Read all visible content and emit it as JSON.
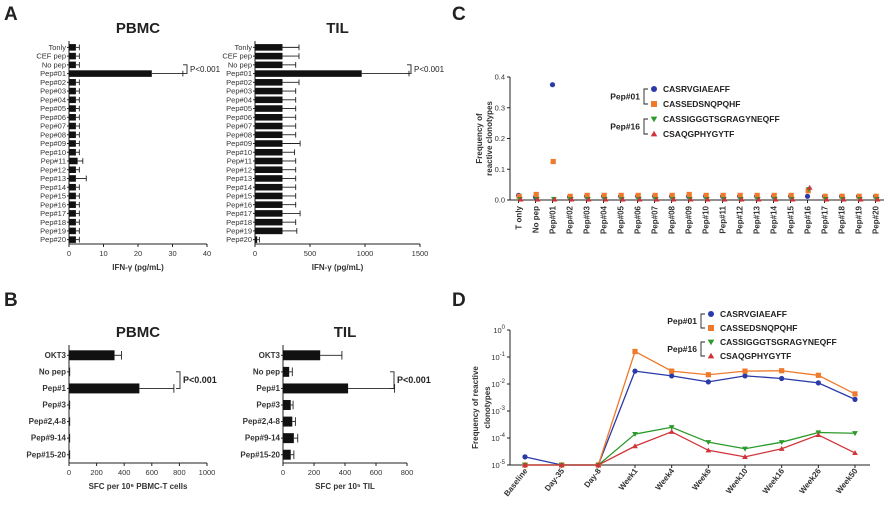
{
  "panels": {
    "A": "A",
    "B": "B",
    "C": "C",
    "D": "D"
  },
  "colors": {
    "bar": "#111111",
    "s1": "#2a3aa8",
    "s2": "#ee7a2b",
    "s3": "#2a9a2a",
    "s4": "#d0343a"
  },
  "chart_data": [
    {
      "id": "A1",
      "type": "bar",
      "orientation": "horizontal",
      "title": "PBMC",
      "xlabel": "IFN-γ (pg/mL)",
      "xlim": [
        0,
        40
      ],
      "xticks": [
        "0",
        "10",
        "20",
        "30",
        "40"
      ],
      "categories": [
        "Tonly",
        "CEF pep",
        "No pep",
        "Pep#01",
        "Pep#02",
        "Pep#03",
        "Pep#04",
        "Pep#05",
        "Pep#06",
        "Pep#07",
        "Pep#08",
        "Pep#09",
        "Pep#10",
        "Pep#11",
        "Pep#12",
        "Pep#13",
        "Pep#14",
        "Pep#15",
        "Pep#16",
        "Pep#17",
        "Pep#18",
        "Pep#19",
        "Pep#20"
      ],
      "values": [
        2,
        2,
        2,
        24,
        2,
        2,
        2,
        2,
        2,
        2,
        2,
        2,
        2,
        2.5,
        2,
        2,
        2,
        2,
        2,
        2,
        2,
        2,
        2
      ],
      "errors": [
        1,
        1,
        1,
        9,
        1,
        1,
        1,
        1,
        1,
        1,
        1,
        1,
        1,
        1.5,
        1,
        3,
        1,
        1,
        1,
        1,
        1,
        1,
        1
      ],
      "annotation": "P<0.001"
    },
    {
      "id": "A2",
      "type": "bar",
      "orientation": "horizontal",
      "title": "TIL",
      "xlabel": "IFN-γ (pg/mL)",
      "xlim": [
        0,
        1500
      ],
      "xticks": [
        "0",
        "500",
        "1000",
        "1500"
      ],
      "categories": [
        "Tonly",
        "CEF pep",
        "No pep",
        "Pep#01",
        "Pep#02",
        "Pep#03",
        "Pep#04",
        "Pep#05",
        "Pep#06",
        "Pep#07",
        "Pep#08",
        "Pep#09",
        "Pep#10",
        "Pep#11",
        "Pep#12",
        "Pep#13",
        "Pep#14",
        "Pep#15",
        "Pep#16",
        "Pep#17",
        "Pep#18",
        "Pep#19",
        "Pep#20"
      ],
      "values": [
        250,
        250,
        250,
        970,
        250,
        250,
        250,
        250,
        250,
        250,
        250,
        250,
        250,
        250,
        250,
        250,
        250,
        250,
        250,
        250,
        250,
        250,
        20
      ],
      "errors": [
        150,
        150,
        120,
        430,
        150,
        120,
        120,
        120,
        120,
        120,
        120,
        160,
        110,
        120,
        120,
        120,
        120,
        120,
        120,
        160,
        120,
        130,
        20
      ],
      "annotation": "P<0.001"
    },
    {
      "id": "B1",
      "type": "bar",
      "orientation": "horizontal",
      "title": "PBMC",
      "xlabel": "SFC per 10⁶ PBMC-T cells",
      "xlim": [
        0,
        1000
      ],
      "xticks": [
        "0",
        "200",
        "400",
        "600",
        "800",
        "1000"
      ],
      "categories": [
        "OKT3",
        "No pep",
        "Pep#1",
        "Pep#3",
        "Pep#2,4-8",
        "Pep#9-14",
        "Pep#15-20"
      ],
      "values": [
        330,
        0,
        510,
        0,
        0,
        0,
        0
      ],
      "errors": [
        50,
        5,
        250,
        5,
        5,
        5,
        5
      ],
      "annotation": "P<0.001"
    },
    {
      "id": "B2",
      "type": "bar",
      "orientation": "horizontal",
      "title": "TIL",
      "xlabel": "SFC per 10⁵ TIL",
      "xlim": [
        0,
        800
      ],
      "xticks": [
        "0",
        "200",
        "400",
        "600",
        "800"
      ],
      "categories": [
        "OKT3",
        "No pep",
        "Pep#1",
        "Pep#3",
        "Pep#2,4-8",
        "Pep#9-14",
        "Pep#15-20"
      ],
      "values": [
        240,
        40,
        420,
        50,
        60,
        70,
        50
      ],
      "errors": [
        140,
        20,
        300,
        15,
        20,
        25,
        20
      ],
      "annotation": "P<0.001"
    },
    {
      "id": "C",
      "type": "scatter",
      "ylabel": "Frequency of reactive clonotypes",
      "ylim": [
        0,
        0.4
      ],
      "yticks": [
        "0.0",
        "0.1",
        "0.2",
        "0.3",
        "0.4"
      ],
      "categories": [
        "T only",
        "No pep",
        "Pep#01",
        "Pep#02",
        "Pep#03",
        "Pep#04",
        "Pep#05",
        "Pep#06",
        "Pep#07",
        "Pep#08",
        "Pep#09",
        "Pep#10",
        "Pep#11",
        "Pep#12",
        "Pep#13",
        "Pep#14",
        "Pep#15",
        "Pep#16",
        "Pep#17",
        "Pep#18",
        "Pep#19",
        "Pep#20"
      ],
      "series": [
        {
          "name": "CASRVGIAEAFF",
          "values": [
            0.015,
            0.01,
            0.375,
            0.01,
            0.012,
            0.012,
            0.012,
            0.012,
            0.012,
            0.012,
            0.012,
            0.012,
            0.012,
            0.012,
            0.012,
            0.012,
            0.012,
            0.012,
            0.012,
            0.012,
            0.012,
            0.012
          ]
        },
        {
          "name": "CASSEDSNQPQHF",
          "values": [
            0.012,
            0.018,
            0.125,
            0.012,
            0.015,
            0.015,
            0.015,
            0.015,
            0.015,
            0.015,
            0.018,
            0.015,
            0.015,
            0.015,
            0.015,
            0.015,
            0.015,
            0.03,
            0.012,
            0.012,
            0.012,
            0.012
          ]
        },
        {
          "name": "CASSIGGGTSGRAGYNEQFF",
          "values": [
            0.003,
            0.003,
            0.003,
            0.003,
            0.003,
            0.003,
            0.003,
            0.003,
            0.003,
            0.003,
            0.003,
            0.003,
            0.003,
            0.003,
            0.003,
            0.003,
            0.003,
            0.035,
            0.003,
            0.003,
            0.003,
            0.003
          ]
        },
        {
          "name": "CSAQGPHYGYTF",
          "values": [
            0.002,
            0.002,
            0.002,
            0.002,
            0.002,
            0.002,
            0.002,
            0.002,
            0.002,
            0.002,
            0.002,
            0.002,
            0.002,
            0.002,
            0.002,
            0.002,
            0.002,
            0.04,
            0.002,
            0.002,
            0.002,
            0.002
          ]
        }
      ],
      "legend_groups": [
        "Pep#01",
        "Pep#16"
      ]
    },
    {
      "id": "D",
      "type": "line",
      "yscale": "log",
      "ylabel": "Frequency of reactive clonotypes",
      "ylim": [
        1e-05,
        1
      ],
      "yticks": [
        {
          "base": "10",
          "exp": "0"
        },
        {
          "base": "10",
          "exp": "-1"
        },
        {
          "base": "10",
          "exp": "-2"
        },
        {
          "base": "10",
          "exp": "-3"
        },
        {
          "base": "10",
          "exp": "-4"
        },
        {
          "base": "10",
          "exp": "-5"
        }
      ],
      "categories": [
        "Baseline",
        "Day-35",
        "Day-8",
        "Week1",
        "Week4",
        "Week6",
        "Week10",
        "Week16",
        "Week26",
        "Week50"
      ],
      "series": [
        {
          "name": "CASRVGIAEAFF",
          "values": [
            2e-05,
            1e-05,
            1e-05,
            0.03,
            0.02,
            0.012,
            0.02,
            0.016,
            0.011,
            0.0027
          ]
        },
        {
          "name": "CASSEDSNQPQHF",
          "values": [
            1e-05,
            1e-05,
            1e-05,
            0.16,
            0.03,
            0.022,
            0.03,
            0.031,
            0.021,
            0.0043
          ]
        },
        {
          "name": "CASSIGGGTSGRAGYNEQFF",
          "values": [
            1e-05,
            1e-05,
            1e-05,
            0.00014,
            0.00025,
            7e-05,
            4e-05,
            7e-05,
            0.00016,
            0.00015
          ]
        },
        {
          "name": "CSAQGPHYGYTF",
          "values": [
            1e-05,
            1e-05,
            1e-05,
            5e-05,
            0.00017,
            3.5e-05,
            2e-05,
            4e-05,
            0.00013,
            2.8e-05
          ]
        }
      ],
      "legend_groups": [
        "Pep#01",
        "Pep#16"
      ]
    }
  ]
}
